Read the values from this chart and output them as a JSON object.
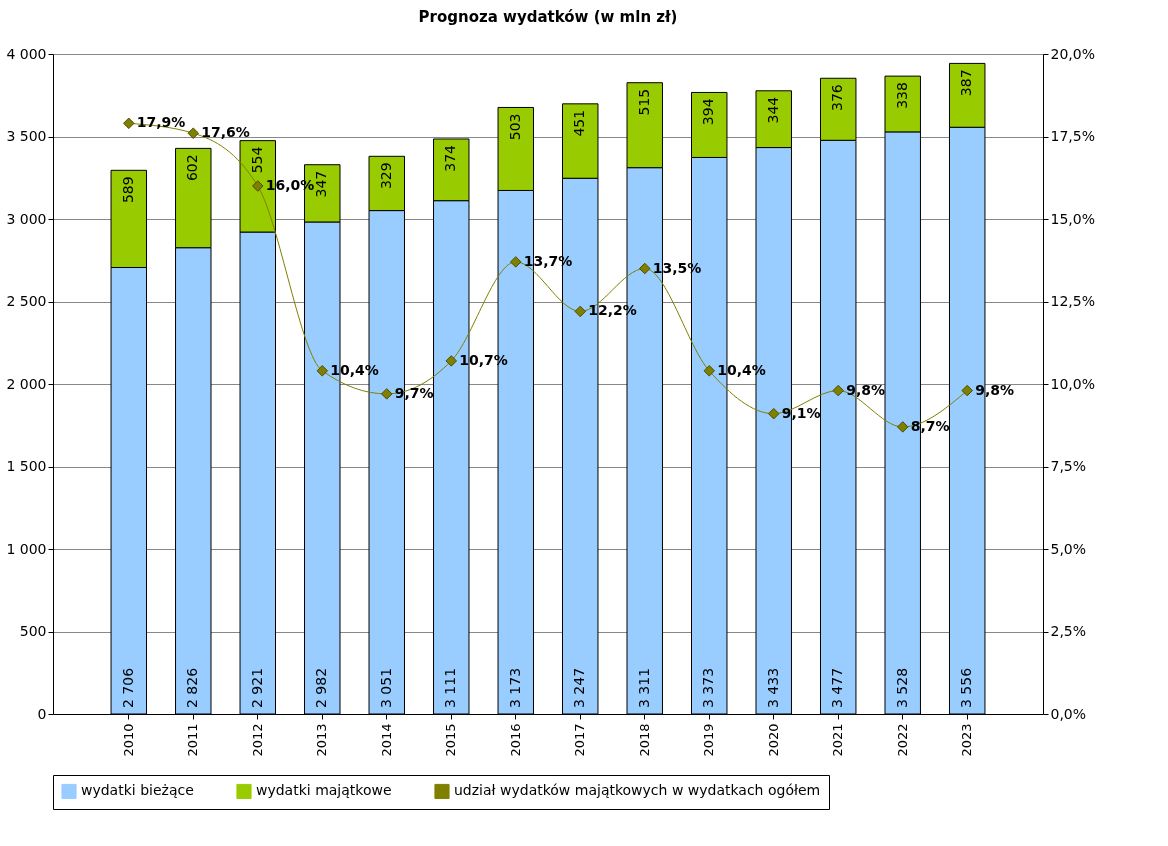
{
  "chart_data": {
    "type": "bar",
    "title": "Prognoza wydatków (w mln zł)",
    "categories": [
      "2010",
      "2011",
      "2012",
      "2013",
      "2014",
      "2015",
      "2016",
      "2017",
      "2018",
      "2019",
      "2020",
      "2021",
      "2022",
      "2023"
    ],
    "stacked": true,
    "grid": "y",
    "legend": "bottom",
    "ylim": [
      0,
      4000
    ],
    "yticks": [
      0,
      500,
      {
        "value": 1000,
        "label": "1 000"
      },
      {
        "value": 1500,
        "label": "1 500"
      },
      {
        "value": 2000,
        "label": "2 000"
      },
      {
        "value": 2500,
        "label": "2 500"
      },
      {
        "value": 3000,
        "label": "3 000"
      },
      {
        "value": 3500,
        "label": "3 500"
      },
      {
        "value": 4000,
        "label": "4 000"
      }
    ],
    "y2lim": [
      0,
      20
    ],
    "y2ticks": [
      {
        "value": 0,
        "label": "0,0%"
      },
      {
        "value": 2.5,
        "label": "2,5%"
      },
      {
        "value": 5,
        "label": "5,0%"
      },
      {
        "value": 7.5,
        "label": "7,5%"
      },
      {
        "value": 10,
        "label": "10,0%"
      },
      {
        "value": 12.5,
        "label": "12,5%"
      },
      {
        "value": 15,
        "label": "15,0%"
      },
      {
        "value": 17.5,
        "label": "17,5%"
      },
      {
        "value": 20,
        "label": "20,0%"
      }
    ],
    "series": [
      {
        "name": "wydatki bieżące",
        "color": "#99ccff",
        "values": [
          2706,
          2826,
          2921,
          2982,
          3051,
          3111,
          3173,
          3247,
          3311,
          3373,
          3433,
          3477,
          3528,
          3556
        ],
        "value_labels": [
          "2 706",
          "2 826",
          "2 921",
          "2 982",
          "3 051",
          "3 111",
          "3 173",
          "3 247",
          "3 311",
          "3 373",
          "3 433",
          "3 477",
          "3 528",
          "3 556"
        ]
      },
      {
        "name": "wydatki majątkowe",
        "color": "#99cc00",
        "values": [
          589,
          602,
          554,
          347,
          329,
          374,
          503,
          451,
          515,
          394,
          344,
          376,
          338,
          387
        ],
        "value_labels": [
          "589",
          "602",
          "554",
          "347",
          "329",
          "374",
          "503",
          "451",
          "515",
          "394",
          "344",
          "376",
          "338",
          "387"
        ]
      },
      {
        "name": "udział wydatków majątkowych w wydatkach ogółem",
        "type": "line",
        "axis": "y2",
        "color": "#808000",
        "marker": "diamond",
        "line_style": "solid",
        "values": [
          17.9,
          17.6,
          16.0,
          10.4,
          9.7,
          10.7,
          13.7,
          12.2,
          13.5,
          10.4,
          9.1,
          9.8,
          8.7,
          9.8
        ],
        "value_labels": [
          "17,9%",
          "17,6%",
          "16,0%",
          "10,4%",
          "9,7%",
          "10,7%",
          "13,7%",
          "12,2%",
          "13,5%",
          "10,4%",
          "9,1%",
          "9,8%",
          "8,7%",
          "9,8%"
        ]
      }
    ]
  }
}
